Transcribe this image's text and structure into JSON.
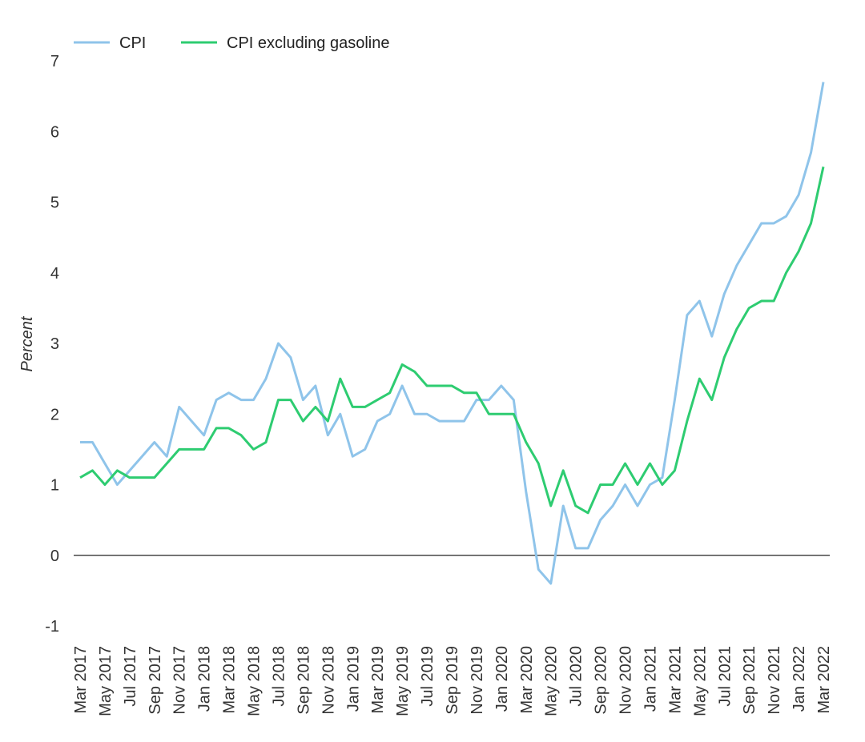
{
  "chart_data": {
    "type": "line",
    "title": "",
    "xlabel": "",
    "ylabel": "Percent",
    "ylim": [
      -1,
      7
    ],
    "yticks": [
      -1,
      0,
      1,
      2,
      3,
      4,
      5,
      6,
      7
    ],
    "grid": false,
    "zero_line": true,
    "legend_position": "top-left",
    "x": [
      "Mar 2017",
      "Apr 2017",
      "May 2017",
      "Jun 2017",
      "Jul 2017",
      "Aug 2017",
      "Sep 2017",
      "Oct 2017",
      "Nov 2017",
      "Dec 2017",
      "Jan 2018",
      "Feb 2018",
      "Mar 2018",
      "Apr 2018",
      "May 2018",
      "Jun 2018",
      "Jul 2018",
      "Aug 2018",
      "Sep 2018",
      "Oct 2018",
      "Nov 2018",
      "Dec 2018",
      "Jan 2019",
      "Feb 2019",
      "Mar 2019",
      "Apr 2019",
      "May 2019",
      "Jun 2019",
      "Jul 2019",
      "Aug 2019",
      "Sep 2019",
      "Oct 2019",
      "Nov 2019",
      "Dec 2019",
      "Jan 2020",
      "Feb 2020",
      "Mar 2020",
      "Apr 2020",
      "May 2020",
      "Jun 2020",
      "Jul 2020",
      "Aug 2020",
      "Sep 2020",
      "Oct 2020",
      "Nov 2020",
      "Dec 2020",
      "Jan 2021",
      "Feb 2021",
      "Mar 2021",
      "Apr 2021",
      "May 2021",
      "Jun 2021",
      "Jul 2021",
      "Aug 2021",
      "Sep 2021",
      "Oct 2021",
      "Nov 2021",
      "Dec 2021",
      "Jan 2022",
      "Feb 2022",
      "Mar 2022"
    ],
    "x_tick_labels": [
      "Mar 2017",
      "May 2017",
      "Jul 2017",
      "Sep 2017",
      "Nov 2017",
      "Jan 2018",
      "Mar 2018",
      "May 2018",
      "Jul 2018",
      "Sep 2018",
      "Nov 2018",
      "Jan 2019",
      "Mar 2019",
      "May 2019",
      "Jul 2019",
      "Sep 2019",
      "Nov 2019",
      "Jan 2020",
      "Mar 2020",
      "May 2020",
      "Jul 2020",
      "Sep 2020",
      "Nov 2020",
      "Jan 2021",
      "Mar 2021",
      "May 2021",
      "Jul 2021",
      "Sep 2021",
      "Nov 2021",
      "Jan 2022",
      "Mar 2022"
    ],
    "series": [
      {
        "name": "CPI",
        "color": "#8fc4ea",
        "values": [
          1.6,
          1.6,
          1.3,
          1.0,
          1.2,
          1.4,
          1.6,
          1.4,
          2.1,
          1.9,
          1.7,
          2.2,
          2.3,
          2.2,
          2.2,
          2.5,
          3.0,
          2.8,
          2.2,
          2.4,
          1.7,
          2.0,
          1.4,
          1.5,
          1.9,
          2.0,
          2.4,
          2.0,
          2.0,
          1.9,
          1.9,
          1.9,
          2.2,
          2.2,
          2.4,
          2.2,
          0.9,
          -0.2,
          -0.4,
          0.7,
          0.1,
          0.1,
          0.5,
          0.7,
          1.0,
          0.7,
          1.0,
          1.1,
          2.2,
          3.4,
          3.6,
          3.1,
          3.7,
          4.1,
          4.4,
          4.7,
          4.7,
          4.8,
          5.1,
          5.7,
          6.7
        ]
      },
      {
        "name": "CPI excluding gasoline",
        "color": "#2ecc71",
        "values": [
          1.1,
          1.2,
          1.0,
          1.2,
          1.1,
          1.1,
          1.1,
          1.3,
          1.5,
          1.5,
          1.5,
          1.8,
          1.8,
          1.7,
          1.5,
          1.6,
          2.2,
          2.2,
          1.9,
          2.1,
          1.9,
          2.5,
          2.1,
          2.1,
          2.2,
          2.3,
          2.7,
          2.6,
          2.4,
          2.4,
          2.4,
          2.3,
          2.3,
          2.0,
          2.0,
          2.0,
          1.6,
          1.3,
          0.7,
          1.2,
          0.7,
          0.6,
          1.0,
          1.0,
          1.3,
          1.0,
          1.3,
          1.0,
          1.2,
          1.9,
          2.5,
          2.2,
          2.8,
          3.2,
          3.5,
          3.6,
          3.6,
          4.0,
          4.3,
          4.7,
          5.5
        ]
      }
    ]
  }
}
